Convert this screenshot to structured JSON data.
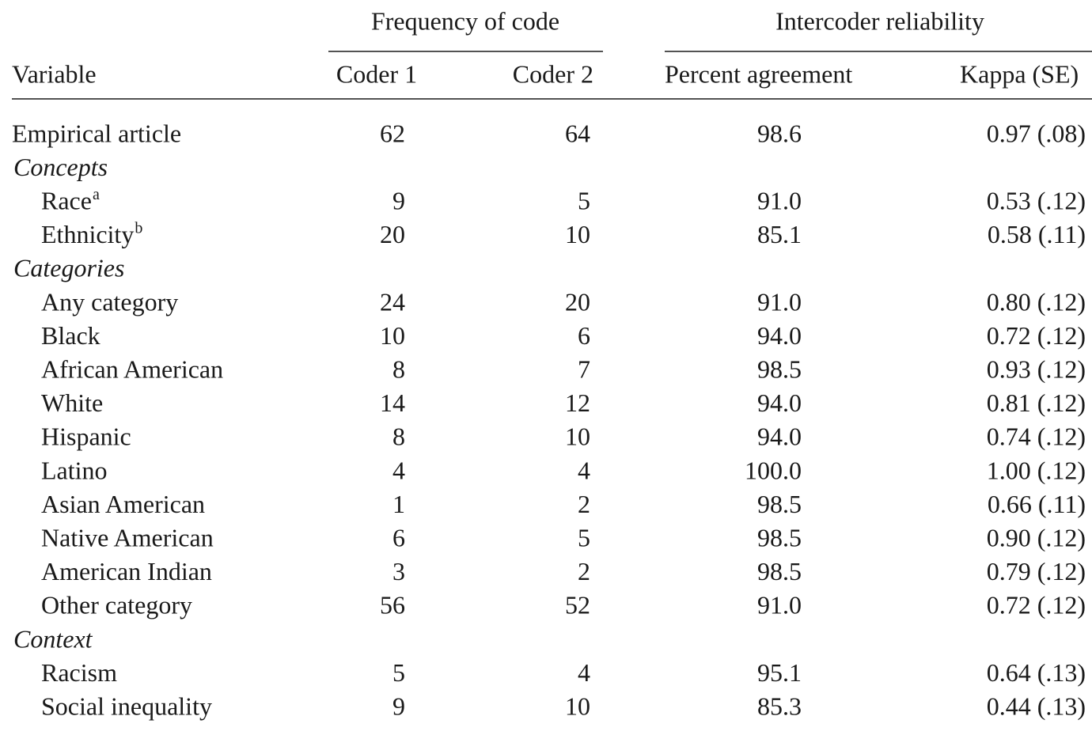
{
  "table": {
    "column_groups": [
      "Frequency of code",
      "Intercoder reliability"
    ],
    "columns": [
      "Variable",
      "Coder 1",
      "Coder 2",
      "Percent agreement",
      "Kappa (SE)"
    ],
    "rows": [
      {
        "label": "Empirical article",
        "cells": [
          "62",
          "64",
          "98.6",
          "0.97 (.08)"
        ]
      },
      {
        "section": "Concepts"
      },
      {
        "label": "Race",
        "note": "a",
        "cells": [
          "9",
          "5",
          "91.0",
          "0.53 (.12)"
        ]
      },
      {
        "label": "Ethnicity",
        "note": "b",
        "cells": [
          "20",
          "10",
          "85.1",
          "0.58 (.11)"
        ]
      },
      {
        "section": "Categories"
      },
      {
        "label": "Any category",
        "cells": [
          "24",
          "20",
          "91.0",
          "0.80 (.12)"
        ]
      },
      {
        "label": "Black",
        "cells": [
          "10",
          "6",
          "94.0",
          "0.72 (.12)"
        ]
      },
      {
        "label": "African American",
        "cells": [
          "8",
          "7",
          "98.5",
          "0.93 (.12)"
        ]
      },
      {
        "label": "White",
        "cells": [
          "14",
          "12",
          "94.0",
          "0.81 (.12)"
        ]
      },
      {
        "label": "Hispanic",
        "cells": [
          "8",
          "10",
          "94.0",
          "0.74 (.12)"
        ]
      },
      {
        "label": "Latino",
        "cells": [
          "4",
          "4",
          "100.0",
          "1.00 (.12)"
        ]
      },
      {
        "label": "Asian American",
        "cells": [
          "1",
          "2",
          "98.5",
          "0.66 (.11)"
        ]
      },
      {
        "label": "Native American",
        "cells": [
          "6",
          "5",
          "98.5",
          "0.90 (.12)"
        ]
      },
      {
        "label": "American Indian",
        "cells": [
          "3",
          "2",
          "98.5",
          "0.79 (.12)"
        ]
      },
      {
        "label": "Other category",
        "cells": [
          "56",
          "52",
          "91.0",
          "0.72 (.12)"
        ]
      },
      {
        "section": "Context"
      },
      {
        "label": "Racism",
        "cells": [
          "5",
          "4",
          "95.1",
          "0.64 (.13)"
        ]
      },
      {
        "label": "Social inequality",
        "cells": [
          "9",
          "10",
          "85.3",
          "0.44 (.13)"
        ]
      }
    ]
  }
}
